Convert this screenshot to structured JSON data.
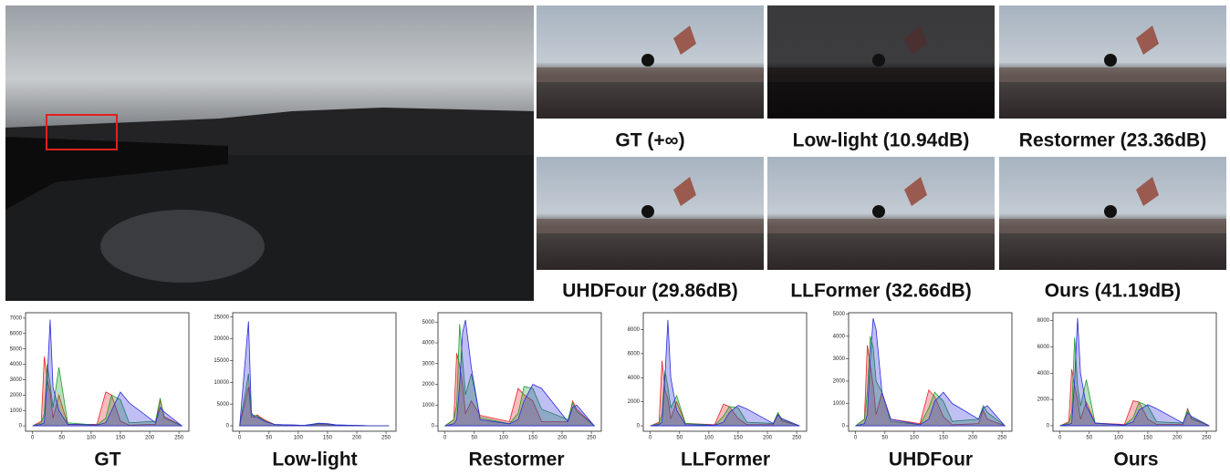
{
  "figure": {
    "captions": [
      "GT (+∞)",
      "Low-light (10.94dB)",
      "Restormer (23.36dB)",
      "UHDFour (29.86dB)",
      "LLFormer (32.66dB)",
      "Ours (41.19dB)"
    ]
  },
  "chart_data": [
    {
      "type": "area",
      "title": "GT",
      "x": [
        0,
        15,
        20,
        25,
        30,
        35,
        45,
        60,
        110,
        125,
        135,
        150,
        165,
        210,
        218,
        225,
        255
      ],
      "xlim": [
        -12,
        267
      ],
      "xticks": [
        0,
        50,
        100,
        150,
        200,
        250
      ],
      "ylim": [
        -350,
        7350
      ],
      "yticks": [
        0,
        1000,
        2000,
        3000,
        4000,
        5000,
        6000,
        7000
      ],
      "series": [
        {
          "color": "#e8212a",
          "values": [
            0,
            300,
            4500,
            3000,
            2200,
            500,
            2000,
            100,
            100,
            2200,
            2000,
            300,
            50,
            100,
            1700,
            600,
            0
          ]
        },
        {
          "color": "#1f9a2a",
          "values": [
            0,
            200,
            800,
            4000,
            2700,
            1200,
            3800,
            200,
            50,
            500,
            2000,
            1700,
            200,
            300,
            1800,
            500,
            0
          ]
        },
        {
          "color": "#2b2bdc",
          "values": [
            0,
            100,
            200,
            3000,
            6900,
            2500,
            1000,
            100,
            50,
            200,
            1000,
            2200,
            1500,
            200,
            1200,
            900,
            0
          ]
        }
      ]
    },
    {
      "type": "area",
      "title": "Low-light",
      "x": [
        0,
        15,
        20,
        25,
        30,
        35,
        45,
        60,
        110,
        125,
        135,
        150,
        165,
        210,
        218,
        225,
        255
      ],
      "xlim": [
        -12,
        267
      ],
      "xticks": [
        0,
        50,
        100,
        150,
        200,
        250
      ],
      "ylim": [
        -1250,
        26000
      ],
      "yticks": [
        0,
        5000,
        10000,
        15000,
        20000,
        25000
      ],
      "series": [
        {
          "color": "#e8212a",
          "values": [
            0,
            9000,
            2000,
            2200,
            2500,
            2000,
            1200,
            300,
            100,
            200,
            400,
            300,
            150,
            50,
            30,
            0,
            0
          ]
        },
        {
          "color": "#1f9a2a",
          "values": [
            0,
            12000,
            2500,
            2400,
            2300,
            1800,
            1000,
            300,
            100,
            300,
            500,
            400,
            200,
            50,
            30,
            0,
            0
          ]
        },
        {
          "color": "#2b2bdc",
          "values": [
            0,
            24000,
            3000,
            2000,
            2000,
            1600,
            900,
            300,
            100,
            400,
            600,
            500,
            200,
            50,
            30,
            0,
            0
          ]
        }
      ]
    },
    {
      "type": "area",
      "title": "Restormer",
      "x": [
        0,
        15,
        20,
        25,
        30,
        35,
        45,
        60,
        110,
        125,
        135,
        150,
        165,
        210,
        218,
        225,
        255
      ],
      "xlim": [
        -12,
        267
      ],
      "xticks": [
        0,
        50,
        100,
        150,
        200,
        250
      ],
      "ylim": [
        -260,
        5450
      ],
      "yticks": [
        0,
        1000,
        2000,
        3000,
        4000,
        5000
      ],
      "series": [
        {
          "color": "#e8212a",
          "values": [
            0,
            300,
            3500,
            2900,
            2000,
            600,
            1200,
            500,
            200,
            1800,
            1500,
            1200,
            200,
            200,
            1200,
            800,
            0
          ]
        },
        {
          "color": "#1f9a2a",
          "values": [
            0,
            300,
            1000,
            4900,
            3200,
            1500,
            2500,
            400,
            100,
            600,
            1900,
            1800,
            800,
            300,
            1100,
            700,
            0
          ]
        },
        {
          "color": "#2b2bdc",
          "values": [
            0,
            100,
            300,
            2000,
            4500,
            5100,
            2800,
            300,
            100,
            300,
            1200,
            2000,
            1800,
            200,
            900,
            1000,
            0
          ]
        }
      ]
    },
    {
      "type": "area",
      "title": "LLFormer",
      "x": [
        0,
        15,
        20,
        25,
        30,
        35,
        45,
        60,
        110,
        125,
        135,
        150,
        165,
        210,
        218,
        225,
        255
      ],
      "xlim": [
        -12,
        267
      ],
      "xticks": [
        0,
        50,
        100,
        150,
        200,
        250
      ],
      "ylim": [
        -450,
        9400
      ],
      "yticks": [
        0,
        2000,
        4000,
        6000,
        8000
      ],
      "series": [
        {
          "color": "#e8212a",
          "values": [
            0,
            300,
            5400,
            3000,
            2200,
            600,
            2000,
            200,
            100,
            1800,
            1600,
            600,
            100,
            100,
            1000,
            400,
            0
          ]
        },
        {
          "color": "#1f9a2a",
          "values": [
            0,
            200,
            1000,
            4600,
            3200,
            1500,
            2500,
            200,
            50,
            800,
            1600,
            1500,
            300,
            200,
            1100,
            500,
            0
          ]
        },
        {
          "color": "#2b2bdc",
          "values": [
            0,
            100,
            300,
            4000,
            8800,
            4000,
            1300,
            100,
            50,
            300,
            1100,
            1700,
            1400,
            200,
            900,
            600,
            0
          ]
        }
      ]
    },
    {
      "type": "area",
      "title": "UHDFour",
      "x": [
        0,
        15,
        20,
        25,
        30,
        35,
        45,
        60,
        110,
        125,
        135,
        150,
        165,
        210,
        218,
        225,
        255
      ],
      "xlim": [
        -12,
        267
      ],
      "xticks": [
        0,
        50,
        100,
        150,
        200,
        250
      ],
      "ylim": [
        -240,
        5050
      ],
      "yticks": [
        0,
        1000,
        2000,
        3000,
        4000,
        5000
      ],
      "series": [
        {
          "color": "#e8212a",
          "values": [
            0,
            300,
            3600,
            2700,
            1800,
            500,
            1500,
            300,
            100,
            1600,
            1300,
            400,
            50,
            100,
            700,
            300,
            0
          ]
        },
        {
          "color": "#1f9a2a",
          "values": [
            0,
            300,
            1500,
            4000,
            3500,
            2000,
            1500,
            200,
            50,
            800,
            1500,
            1100,
            200,
            300,
            900,
            600,
            0
          ]
        },
        {
          "color": "#2b2bdc",
          "values": [
            0,
            100,
            500,
            3000,
            4800,
            4300,
            1500,
            300,
            50,
            300,
            1100,
            1500,
            1000,
            300,
            800,
            900,
            0
          ]
        }
      ]
    },
    {
      "type": "area",
      "title": "Ours",
      "x": [
        0,
        15,
        20,
        25,
        30,
        35,
        45,
        60,
        110,
        125,
        135,
        150,
        165,
        210,
        218,
        225,
        255
      ],
      "xlim": [
        -12,
        267
      ],
      "xticks": [
        0,
        50,
        100,
        150,
        200,
        250
      ],
      "ylim": [
        -420,
        8600
      ],
      "yticks": [
        0,
        2000,
        4000,
        6000,
        8000
      ],
      "series": [
        {
          "color": "#e8212a",
          "values": [
            0,
            300,
            4300,
            3000,
            2000,
            500,
            1800,
            200,
            100,
            1900,
            1800,
            500,
            100,
            100,
            1300,
            500,
            0
          ]
        },
        {
          "color": "#1f9a2a",
          "values": [
            0,
            200,
            1000,
            6700,
            3000,
            1500,
            3500,
            200,
            50,
            600,
            1800,
            1500,
            300,
            200,
            1200,
            600,
            0
          ]
        },
        {
          "color": "#2b2bdc",
          "values": [
            0,
            100,
            200,
            3500,
            8200,
            4000,
            1500,
            200,
            50,
            300,
            1200,
            1600,
            1300,
            200,
            1000,
            700,
            0
          ]
        }
      ]
    }
  ]
}
